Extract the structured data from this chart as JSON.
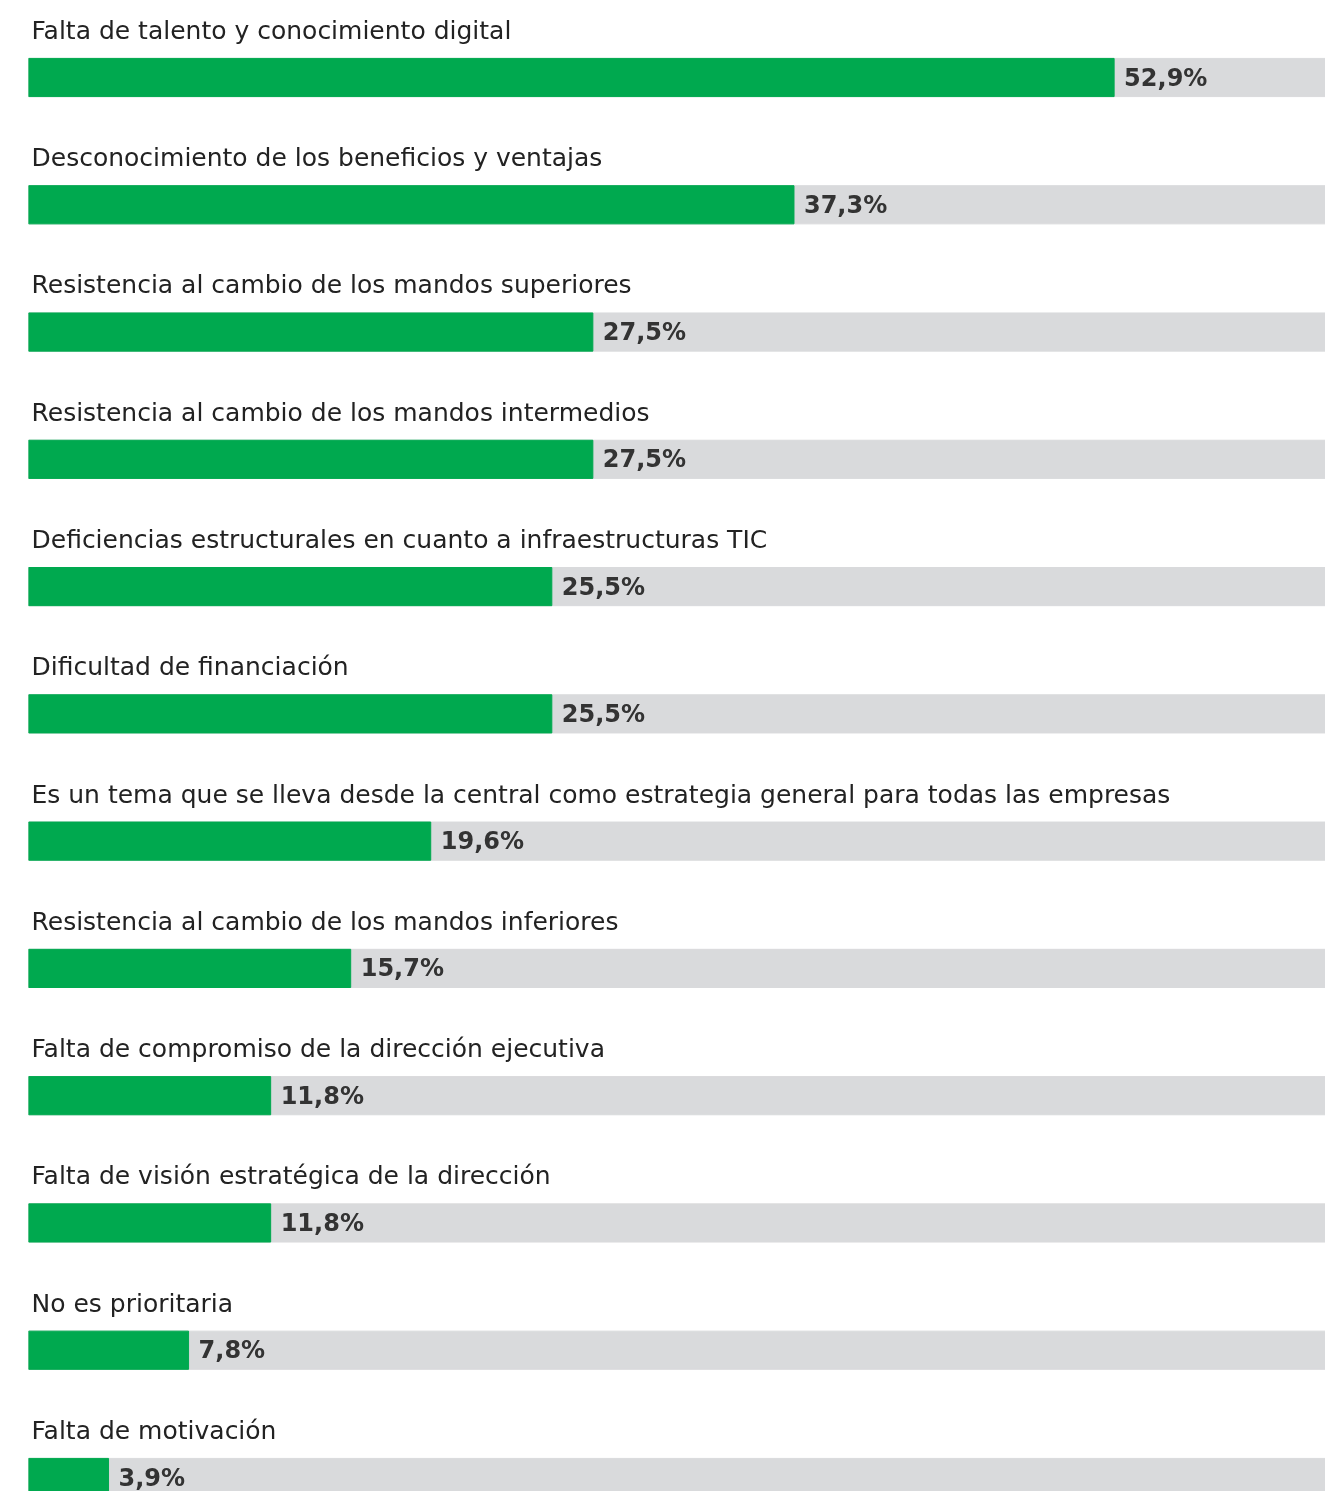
{
  "chart_data": {
    "type": "bar",
    "orientation": "horizontal",
    "categories": [
      "Falta de talento y conocimiento digital",
      "Desconocimiento de los beneficios y ventajas",
      "Resistencia al cambio de los mandos superiores",
      "Resistencia al cambio de los mandos intermedios",
      "Deficiencias estructurales en cuanto a infraestructuras TIC",
      "Dificultad de financiación",
      "Es un tema que se lleva desde la central como estrategia general para todas las empresas",
      "Resistencia al cambio de los mandos inferiores",
      "Falta de compromiso de la dirección ejecutiva",
      "Falta de visión estratégica de la dirección",
      "No es prioritaria",
      "Falta de motivación"
    ],
    "values": [
      52.9,
      37.3,
      27.5,
      27.5,
      25.5,
      25.5,
      19.6,
      15.7,
      11.8,
      11.8,
      7.8,
      3.9
    ],
    "value_labels": [
      "52,9%",
      "37,3%",
      "27,5%",
      "27,5%",
      "25,5%",
      "25,5%",
      "19,6%",
      "15,7%",
      "11,8%",
      "11,8%",
      "7,8%",
      "3,9%"
    ],
    "color": "#00a94f",
    "xlim": [
      0,
      63.2
    ],
    "tick_labels": false,
    "grid": false
  }
}
